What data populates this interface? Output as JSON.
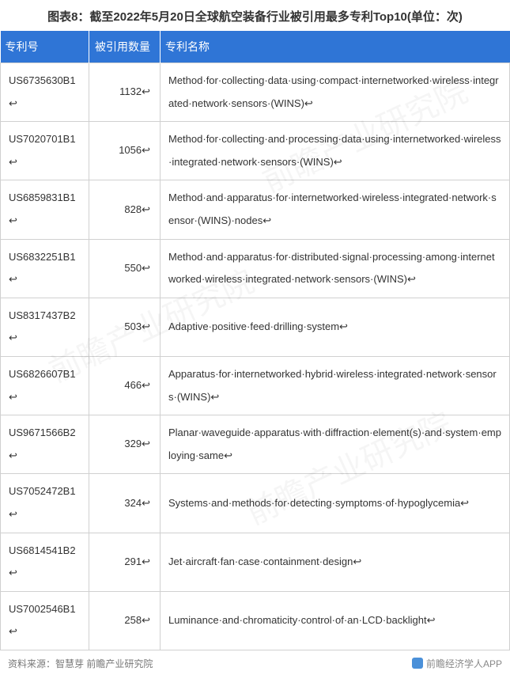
{
  "title": "图表8：截至2022年5月20日全球航空装备行业被引用最多专利Top10(单位：次)",
  "header_bg": "#2f75d6",
  "columns": [
    {
      "key": "id",
      "label": "专利号",
      "class": "col-id"
    },
    {
      "key": "count",
      "label": "被引用数量",
      "class": "col-count"
    },
    {
      "key": "name",
      "label": "专利名称",
      "class": "col-name"
    }
  ],
  "rows": [
    {
      "id": "US6735630B1",
      "count": "1132",
      "name": "Method for collecting data using compact internetworked wireless integrated network sensors (WINS)"
    },
    {
      "id": "US7020701B1",
      "count": "1056",
      "name": "Method for collecting and processing data using internetworked wireless integrated network sensors (WINS)"
    },
    {
      "id": "US6859831B1",
      "count": "828",
      "name": "Method and apparatus for internetworked wireless integrated network sensor (WINS) nodes"
    },
    {
      "id": "US6832251B1",
      "count": "550",
      "name": "Method and apparatus for distributed signal processing among internetworked wireless integrated network sensors (WINS)"
    },
    {
      "id": "US8317437B2",
      "count": "503",
      "name": "Adaptive positive feed drilling system"
    },
    {
      "id": "US6826607B1",
      "count": "466",
      "name": "Apparatus for internetworked hybrid wireless integrated network sensors (WINS)"
    },
    {
      "id": "US9671566B2",
      "count": "329",
      "name": "Planar waveguide apparatus with diffraction element(s) and system employing same"
    },
    {
      "id": "US7052472B1",
      "count": "324",
      "name": "Systems and methods for detecting symptoms of hypoglycemia"
    },
    {
      "id": "US6814541B2",
      "count": "291",
      "name": "Jet aircraft fan case containment design"
    },
    {
      "id": "US7002546B1",
      "count": "258",
      "name": "Luminance and chromaticity control of an LCD backlight"
    }
  ],
  "footer_left": "资料来源：智慧芽 前瞻产业研究院",
  "footer_right": "前瞻经济学人APP",
  "watermark": "前瞻产业研究院",
  "border_color": "#d0d0d0",
  "suffix": "↩"
}
